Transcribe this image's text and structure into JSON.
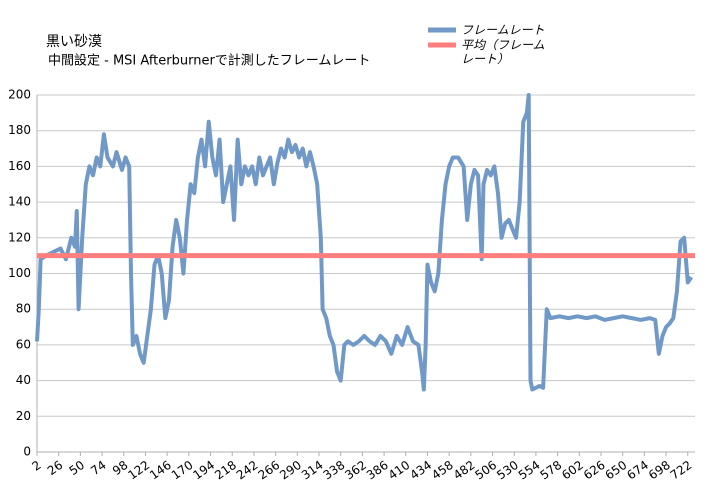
{
  "chart_data": {
    "type": "line",
    "title": "黒い砂漠",
    "subtitle": "中間設定 - MSI Afterburnerで計測したフレームレート",
    "x": [
      2,
      4,
      6,
      12,
      20,
      28,
      34,
      40,
      44,
      46,
      48,
      52,
      56,
      60,
      64,
      68,
      72,
      76,
      80,
      86,
      90,
      96,
      100,
      104,
      106,
      108,
      112,
      116,
      120,
      124,
      128,
      132,
      136,
      140,
      144,
      148,
      152,
      156,
      160,
      164,
      168,
      172,
      176,
      180,
      184,
      188,
      192,
      196,
      200,
      204,
      208,
      212,
      216,
      220,
      224,
      228,
      232,
      236,
      240,
      244,
      248,
      252,
      256,
      260,
      264,
      268,
      272,
      276,
      280,
      284,
      288,
      292,
      296,
      300,
      304,
      308,
      312,
      316,
      318,
      322,
      326,
      330,
      334,
      338,
      342,
      346,
      352,
      358,
      364,
      370,
      376,
      382,
      388,
      394,
      400,
      406,
      412,
      418,
      424,
      428,
      430,
      432,
      434,
      438,
      442,
      446,
      450,
      454,
      458,
      462,
      468,
      474,
      478,
      482,
      486,
      490,
      494,
      496,
      500,
      504,
      508,
      512,
      516,
      520,
      524,
      528,
      532,
      536,
      540,
      544,
      546,
      548,
      550,
      554,
      558,
      562,
      566,
      570,
      580,
      590,
      600,
      610,
      620,
      630,
      640,
      650,
      660,
      670,
      680,
      686,
      690,
      694,
      698,
      702,
      706,
      710,
      714,
      718,
      722,
      726
    ],
    "series": [
      {
        "name": "フレームレート",
        "color": "#7099c8",
        "values": [
          62,
          80,
          108,
          110,
          112,
          114,
          108,
          120,
          115,
          135,
          80,
          120,
          150,
          160,
          155,
          165,
          160,
          178,
          165,
          160,
          168,
          158,
          165,
          160,
          100,
          60,
          65,
          55,
          50,
          65,
          80,
          105,
          110,
          100,
          75,
          85,
          115,
          130,
          120,
          100,
          130,
          150,
          145,
          165,
          175,
          160,
          185,
          165,
          155,
          175,
          140,
          150,
          160,
          130,
          175,
          150,
          160,
          155,
          160,
          150,
          165,
          155,
          160,
          165,
          150,
          162,
          170,
          165,
          175,
          168,
          172,
          165,
          170,
          160,
          168,
          160,
          150,
          120,
          80,
          75,
          65,
          60,
          45,
          40,
          60,
          62,
          60,
          62,
          65,
          62,
          60,
          65,
          62,
          55,
          65,
          60,
          70,
          62,
          60,
          45,
          35,
          60,
          105,
          95,
          90,
          100,
          130,
          150,
          160,
          165,
          165,
          160,
          130,
          150,
          158,
          155,
          108,
          150,
          158,
          155,
          160,
          145,
          120,
          128,
          130,
          125,
          120,
          140,
          185,
          190,
          200,
          40,
          35,
          36,
          37,
          36,
          80,
          75,
          76,
          75,
          76,
          75,
          76,
          74,
          75,
          76,
          75,
          74,
          75,
          74,
          55,
          65,
          70,
          72,
          75,
          90,
          118,
          120,
          95,
          98
        ]
      },
      {
        "name": "平均（フレームレート）",
        "color": "#ff7f7f",
        "value": 110
      }
    ],
    "xlim": [
      2,
      730
    ],
    "xticks": [
      2,
      26,
      50,
      74,
      98,
      122,
      146,
      170,
      194,
      218,
      242,
      266,
      290,
      314,
      338,
      362,
      386,
      410,
      434,
      458,
      482,
      506,
      530,
      554,
      578,
      602,
      626,
      650,
      674,
      698,
      722
    ],
    "ylim": [
      0,
      200
    ],
    "yticks": [
      0,
      20,
      40,
      60,
      80,
      100,
      120,
      140,
      160,
      180,
      200
    ],
    "grid": true
  }
}
